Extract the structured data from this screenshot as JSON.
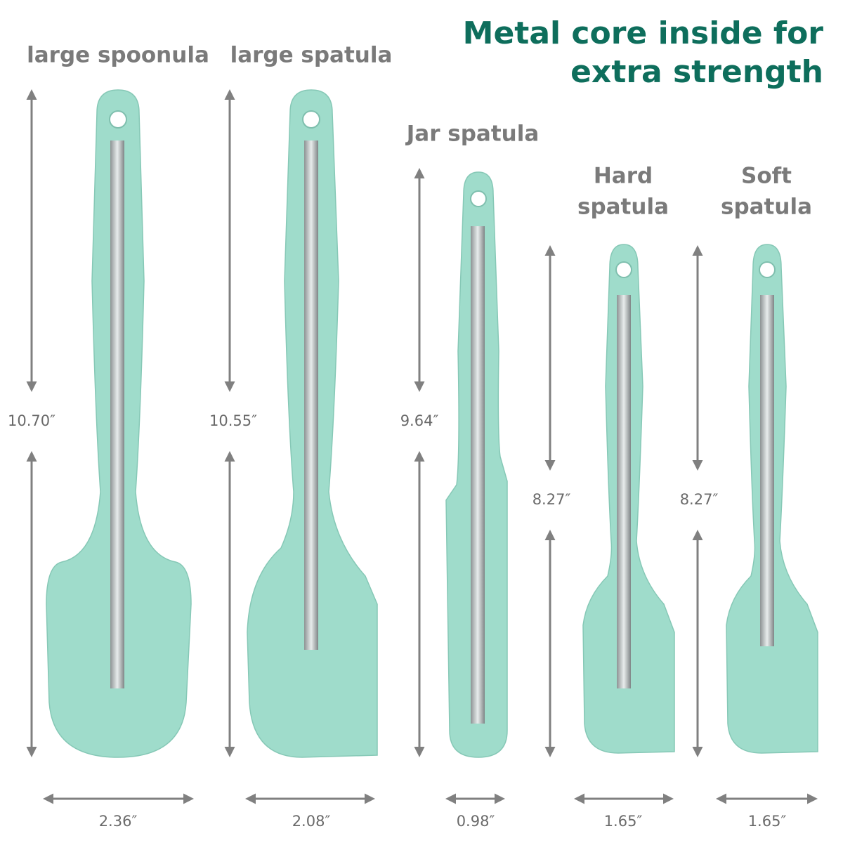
{
  "header": {
    "title_lines": [
      "Metal core inside for",
      "extra strength"
    ]
  },
  "products": [
    {
      "name_lines": [
        "large spoonula"
      ],
      "length": "10.70″",
      "width": "2.36″"
    },
    {
      "name_lines": [
        "large spatula"
      ],
      "length": "10.55″",
      "width": "2.08″"
    },
    {
      "name_lines": [
        "Jar spatula"
      ],
      "length": "9.64″",
      "width": "0.98″"
    },
    {
      "name_lines": [
        "Hard",
        "spatula"
      ],
      "length": "8.27″",
      "width": "1.65″"
    },
    {
      "name_lines": [
        "Soft",
        "spatula"
      ],
      "length": "8.27″",
      "width": "1.65″"
    }
  ]
}
